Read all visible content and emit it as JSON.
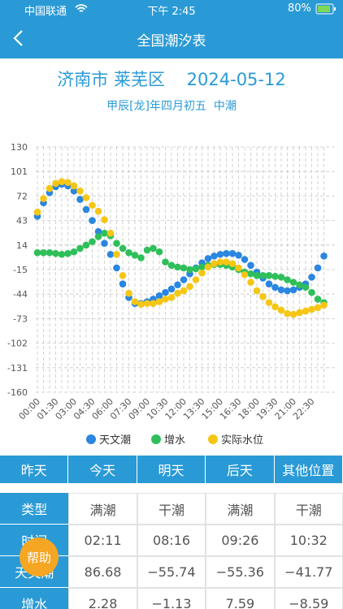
{
  "status_bar": {
    "carrier": "中国联通",
    "time": "下午 2:45",
    "battery": "80%"
  },
  "nav": {
    "title": "全国潮汐表"
  },
  "header": {
    "location": "济南市 莱芜区",
    "date": "2024-05-12",
    "lunar": "甲辰[龙]年四月初五  中潮"
  },
  "chart_data": {
    "type": "scatter",
    "categories": [
      "00:00",
      null,
      null,
      "01:30",
      null,
      null,
      "03:00",
      null,
      null,
      "04:30",
      null,
      null,
      "06:00",
      null,
      null,
      "07:30",
      null,
      null,
      "09:00",
      null,
      null,
      "10:30",
      null,
      null,
      "12:00",
      null,
      null,
      "13:30",
      null,
      null,
      "15:00",
      null,
      null,
      "16:30",
      null,
      null,
      "18:00",
      null,
      null,
      "19:30",
      null,
      null,
      "21:00",
      null,
      null,
      "22:30",
      null,
      null
    ],
    "ylim": [
      -160,
      130
    ],
    "yticks": [
      130,
      101,
      72,
      43,
      14,
      -15,
      -44,
      -73,
      -102,
      -131,
      -160
    ],
    "grid": true,
    "legend": "bottom",
    "series": [
      {
        "name": "天文潮",
        "color": "#2a86e0",
        "values": [
          48,
          64,
          76,
          83,
          86,
          84,
          78,
          68,
          56,
          43,
          30,
          16,
          3,
          -13,
          -32,
          -48,
          -55,
          -55,
          -53,
          -50,
          -46,
          -42,
          -38,
          -33,
          -27,
          -20,
          -13,
          -7,
          -2,
          1,
          3,
          4,
          4,
          2,
          -3,
          -10,
          -18,
          -25,
          -32,
          -36,
          -39,
          -40,
          -39,
          -36,
          -32,
          -24,
          -13,
          1
        ]
      },
      {
        "name": "增水",
        "color": "#2fbf5a",
        "values": [
          5,
          5,
          5,
          4,
          3,
          4,
          6,
          10,
          14,
          18,
          24,
          28,
          25,
          16,
          10,
          5,
          2,
          -1,
          8,
          10,
          6,
          -6,
          -10,
          -12,
          -13,
          -15,
          -14,
          -12,
          -10,
          -9,
          -9,
          -10,
          -12,
          -15,
          -18,
          -20,
          -22,
          -22,
          -22,
          -23,
          -24,
          -27,
          -30,
          -33,
          -36,
          -42,
          -50,
          -54
        ]
      },
      {
        "name": "实际水位",
        "color": "#f6c615",
        "values": [
          53,
          69,
          81,
          87,
          89,
          88,
          84,
          78,
          70,
          61,
          54,
          44,
          28,
          3,
          -22,
          -43,
          -53,
          -56,
          -55,
          -55,
          -53,
          -50,
          -48,
          -43,
          -40,
          -35,
          -27,
          -19,
          -12,
          -8,
          -6,
          -6,
          -8,
          -13,
          -21,
          -30,
          -40,
          -47,
          -54,
          -59,
          -63,
          -67,
          -68,
          -66,
          -64,
          -62,
          -60,
          -57
        ]
      }
    ]
  },
  "tabs": [
    "昨天",
    "今天",
    "明天",
    "后天",
    "其他位置"
  ],
  "table": {
    "rows": [
      [
        "类型",
        "满潮",
        "干潮",
        "满潮",
        "干潮"
      ],
      [
        "时间",
        "02:11",
        "08:16",
        "09:26",
        "10:32"
      ],
      [
        "天文潮",
        "86.68",
        "−55.74",
        "−55.36",
        "−41.77"
      ],
      [
        "增水",
        "2.28",
        "−1.13",
        "7.59",
        "−8.59"
      ]
    ]
  },
  "help_button": "帮助"
}
